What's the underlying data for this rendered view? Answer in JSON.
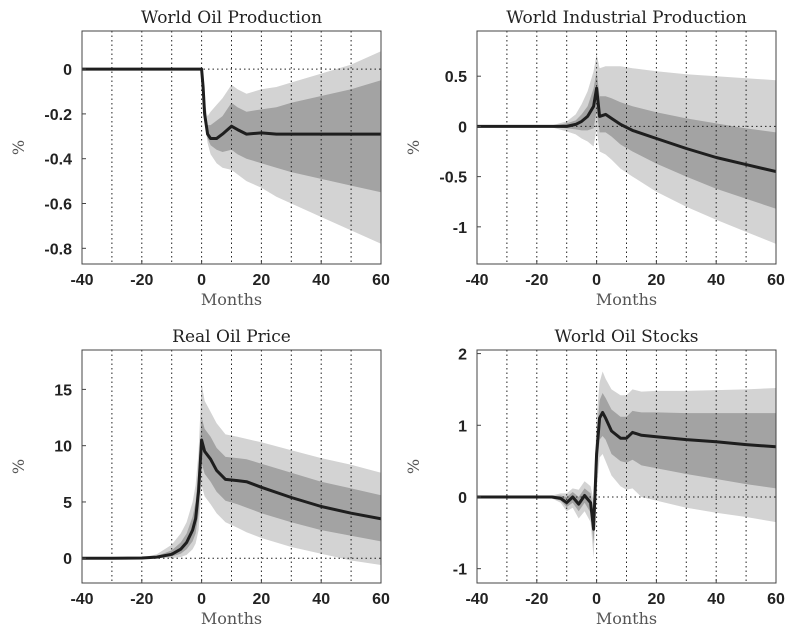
{
  "chart_data": [
    {
      "type": "area",
      "title": "World Oil Production",
      "xlabel": "Months",
      "ylabel": "%",
      "xlim": [
        -40,
        60
      ],
      "ylim": [
        -0.87,
        0.17
      ],
      "xticks": [
        -40,
        -20,
        0,
        20,
        40,
        60
      ],
      "xtick_labels": [
        "-40",
        "-20",
        "0",
        "20",
        "40",
        "60"
      ],
      "yticks": [
        0,
        -0.2,
        -0.4,
        -0.6,
        -0.8
      ],
      "ytick_labels": [
        "0",
        "-0.2",
        "-0.4",
        "-0.6",
        "-0.8"
      ],
      "grid": "vertical dotted lines every 10 months; dotted zero line",
      "x": [
        -40,
        -20,
        0,
        0.5,
        1,
        2,
        3,
        5,
        7,
        10,
        12,
        15,
        20,
        25,
        30,
        40,
        50,
        60
      ],
      "series": [
        {
          "values": [
            0,
            0,
            0,
            -0.08,
            -0.2,
            -0.29,
            -0.31,
            -0.31,
            -0.29,
            -0.255,
            -0.27,
            -0.29,
            -0.285,
            -0.29,
            -0.29,
            -0.29,
            -0.29,
            -0.29
          ]
        }
      ],
      "bands": [
        {
          "level": "outer",
          "lower": [
            0,
            0,
            0,
            -0.09,
            -0.23,
            -0.33,
            -0.38,
            -0.42,
            -0.44,
            -0.45,
            -0.47,
            -0.5,
            -0.53,
            -0.57,
            -0.6,
            -0.66,
            -0.72,
            -0.78
          ],
          "upper": [
            0,
            0,
            0,
            -0.06,
            -0.15,
            -0.21,
            -0.19,
            -0.16,
            -0.13,
            -0.07,
            -0.09,
            -0.11,
            -0.09,
            -0.08,
            -0.06,
            -0.02,
            0.02,
            0.08
          ]
        },
        {
          "level": "inner",
          "lower": [
            0,
            0,
            0,
            -0.085,
            -0.22,
            -0.31,
            -0.34,
            -0.36,
            -0.37,
            -0.36,
            -0.38,
            -0.4,
            -0.42,
            -0.44,
            -0.46,
            -0.49,
            -0.52,
            -0.55
          ],
          "upper": [
            0,
            0,
            0,
            -0.07,
            -0.17,
            -0.25,
            -0.25,
            -0.23,
            -0.21,
            -0.15,
            -0.17,
            -0.19,
            -0.18,
            -0.17,
            -0.15,
            -0.12,
            -0.09,
            -0.05
          ]
        }
      ]
    },
    {
      "type": "area",
      "title": "World Industrial Production",
      "xlabel": "Months",
      "ylabel": "%",
      "xlim": [
        -40,
        60
      ],
      "ylim": [
        -1.37,
        0.95
      ],
      "xticks": [
        -40,
        -20,
        0,
        20,
        40,
        60
      ],
      "xtick_labels": [
        "-40",
        "-20",
        "0",
        "20",
        "40",
        "60"
      ],
      "yticks": [
        0.5,
        0,
        -0.5,
        -1
      ],
      "ytick_labels": [
        "0.5",
        "0",
        "-0.5",
        "-1"
      ],
      "grid": "vertical dotted lines every 10 months; dotted zero line",
      "x": [
        -40,
        -20,
        -15,
        -10,
        -7,
        -5,
        -3,
        -1,
        0,
        1,
        3,
        5,
        8,
        12,
        20,
        30,
        40,
        50,
        60
      ],
      "series": [
        {
          "values": [
            0,
            0,
            0,
            0,
            0.02,
            0.05,
            0.1,
            0.2,
            0.38,
            0.1,
            0.12,
            0.08,
            0.02,
            -0.04,
            -0.12,
            -0.22,
            -0.31,
            -0.38,
            -0.45
          ]
        }
      ],
      "bands": [
        {
          "level": "outer",
          "lower": [
            0,
            0,
            -0.01,
            -0.05,
            -0.08,
            -0.12,
            -0.15,
            -0.2,
            -0.02,
            -0.25,
            -0.28,
            -0.33,
            -0.42,
            -0.5,
            -0.65,
            -0.8,
            -0.93,
            -1.05,
            -1.17
          ],
          "upper": [
            0,
            0,
            0.01,
            0.05,
            0.12,
            0.22,
            0.35,
            0.55,
            0.72,
            0.58,
            0.6,
            0.6,
            0.6,
            0.58,
            0.55,
            0.52,
            0.5,
            0.48,
            0.46
          ]
        },
        {
          "level": "inner",
          "lower": [
            0,
            0,
            0,
            -0.02,
            -0.03,
            -0.04,
            -0.04,
            -0.02,
            0.15,
            -0.06,
            -0.06,
            -0.1,
            -0.18,
            -0.25,
            -0.37,
            -0.5,
            -0.62,
            -0.72,
            -0.82
          ]
        },
        {
          "level": "inner_upper_ref",
          "upper": [
            0,
            0,
            0.005,
            0.03,
            0.06,
            0.12,
            0.2,
            0.38,
            0.55,
            0.3,
            0.3,
            0.28,
            0.24,
            0.2,
            0.14,
            0.08,
            0.03,
            -0.02,
            -0.06
          ]
        }
      ]
    },
    {
      "type": "area",
      "title": "Real Oil Price",
      "xlabel": "Months",
      "ylabel": "%",
      "xlim": [
        -40,
        60
      ],
      "ylim": [
        -2.2,
        18.5
      ],
      "xticks": [
        -40,
        -20,
        0,
        20,
        40,
        60
      ],
      "xtick_labels": [
        "-40",
        "-20",
        "0",
        "20",
        "40",
        "60"
      ],
      "yticks": [
        15,
        10,
        5,
        0
      ],
      "ytick_labels": [
        "15",
        "10",
        "5",
        "0"
      ],
      "grid": "vertical dotted lines every 10 months; dotted zero line",
      "x": [
        -40,
        -30,
        -20,
        -15,
        -10,
        -7,
        -5,
        -3,
        -2,
        -1,
        0,
        1,
        3,
        5,
        8,
        12,
        15,
        20,
        30,
        40,
        50,
        60
      ],
      "series": [
        {
          "values": [
            0,
            0,
            0.02,
            0.1,
            0.35,
            0.8,
            1.4,
            2.5,
            3.5,
            6,
            10.5,
            9.5,
            8.8,
            7.8,
            7,
            6.9,
            6.8,
            6.3,
            5.4,
            4.6,
            4.0,
            3.5
          ]
        }
      ],
      "bands": [
        {
          "level": "outer",
          "lower": [
            0,
            0,
            0,
            0,
            0.02,
            0.1,
            0.3,
            0.8,
            1.3,
            2.5,
            6.5,
            5.5,
            4.8,
            4.0,
            3.2,
            2.7,
            2.3,
            1.8,
            1.0,
            0.4,
            -0.2,
            -0.6
          ],
          "upper": [
            0,
            0,
            0.06,
            0.35,
            1.2,
            2.2,
            3.2,
            5,
            6.5,
            9.5,
            15.5,
            14,
            13,
            12,
            11,
            10.8,
            10.6,
            10.3,
            9.6,
            8.9,
            8.3,
            7.6
          ]
        },
        {
          "level": "inner",
          "lower": [
            0,
            0,
            0.01,
            0.05,
            0.15,
            0.4,
            0.8,
            1.5,
            2.2,
            4,
            8.5,
            7.5,
            6.8,
            5.9,
            5.1,
            4.8,
            4.5,
            4.0,
            3.2,
            2.5,
            2.0,
            1.5
          ],
          "upper": [
            0,
            0,
            0.03,
            0.2,
            0.7,
            1.4,
            2.2,
            3.7,
            5,
            8,
            12.5,
            11.5,
            10.8,
            9.8,
            9.0,
            8.9,
            8.8,
            8.4,
            7.6,
            6.8,
            6.2,
            5.6
          ]
        }
      ]
    },
    {
      "type": "area",
      "title": "World Oil Stocks",
      "xlabel": "Months",
      "ylabel": "%",
      "xlim": [
        -40,
        60
      ],
      "ylim": [
        -1.2,
        2.05
      ],
      "xticks": [
        -40,
        -20,
        0,
        20,
        40,
        60
      ],
      "xtick_labels": [
        "-40",
        "-20",
        "0",
        "20",
        "40",
        "60"
      ],
      "yticks": [
        2,
        1,
        0,
        -1
      ],
      "ytick_labels": [
        "2",
        "1",
        "0",
        "-1"
      ],
      "grid": "vertical dotted lines every 10 months; dotted zero line",
      "x": [
        -40,
        -20,
        -15,
        -12,
        -10,
        -8,
        -6,
        -4,
        -2,
        -1,
        0,
        1,
        2,
        3,
        5,
        8,
        10,
        12,
        15,
        20,
        30,
        40,
        50,
        60
      ],
      "series": [
        {
          "values": [
            0,
            0,
            0,
            -0.02,
            -0.08,
            0,
            -0.1,
            0.02,
            -0.08,
            -0.45,
            0.6,
            1.1,
            1.18,
            1.1,
            0.92,
            0.82,
            0.82,
            0.9,
            0.86,
            0.84,
            0.8,
            0.77,
            0.73,
            0.7
          ]
        }
      ],
      "bands": [
        {
          "level": "outer",
          "lower": [
            0,
            0,
            -0.02,
            -0.08,
            -0.2,
            -0.15,
            -0.3,
            -0.2,
            -0.35,
            -0.85,
            0.1,
            0.55,
            0.6,
            0.5,
            0.3,
            0.15,
            0.1,
            0.12,
            0.0,
            -0.05,
            -0.15,
            -0.22,
            -0.28,
            -0.35
          ]
        },
        {
          "level": "outer_upper_ref",
          "upper": [
            0,
            0,
            0.02,
            0.05,
            0.05,
            0.12,
            0.1,
            0.22,
            0.15,
            -0.05,
            1.1,
            1.6,
            1.75,
            1.65,
            1.5,
            1.42,
            1.42,
            1.5,
            1.47,
            1.48,
            1.48,
            1.49,
            1.5,
            1.52
          ]
        },
        {
          "level": "inner",
          "lower": [
            0,
            0,
            -0.01,
            -0.05,
            -0.14,
            -0.08,
            -0.2,
            -0.08,
            -0.22,
            -0.65,
            0.35,
            0.8,
            0.85,
            0.8,
            0.6,
            0.5,
            0.48,
            0.52,
            0.44,
            0.4,
            0.32,
            0.25,
            0.18,
            0.12
          ],
          "upper": [
            0,
            0,
            0.01,
            0.02,
            0.0,
            0.07,
            0.0,
            0.12,
            0.05,
            -0.25,
            0.85,
            1.35,
            1.45,
            1.38,
            1.22,
            1.12,
            1.12,
            1.2,
            1.18,
            1.18,
            1.17,
            1.17,
            1.17,
            1.17
          ]
        }
      ]
    }
  ],
  "colors": {
    "outer_band": "#d3d3d3",
    "inner_band": "#a3a3a3",
    "line": "#1e1e1e",
    "axis": "#444444"
  }
}
